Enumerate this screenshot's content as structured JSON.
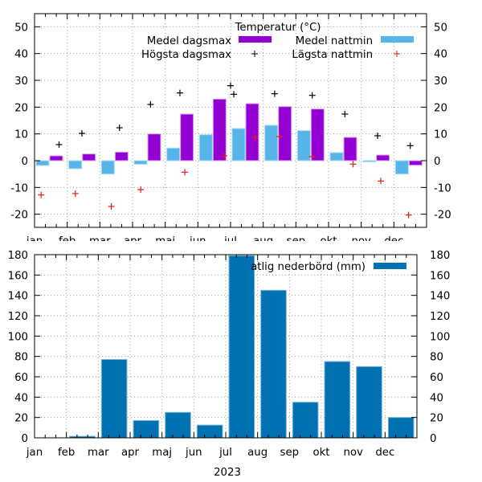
{
  "chart_data": [
    {
      "type": "bar",
      "title": "Temperatur (°C)",
      "xlabel": "",
      "ylabel": "",
      "ylim": [
        -25,
        55
      ],
      "yticks": [
        -20,
        -10,
        0,
        10,
        20,
        30,
        40,
        50
      ],
      "grid": true,
      "legend_position": "top-right",
      "categories": [
        "jan",
        "feb",
        "mar",
        "apr",
        "maj",
        "jun",
        "jul",
        "aug",
        "sep",
        "okt",
        "nov",
        "dec"
      ],
      "series": [
        {
          "name": "Medel nattmin",
          "kind": "bar",
          "color": "#56b4e9",
          "values": [
            -1.8,
            -3.0,
            -5.0,
            -1.3,
            4.7,
            9.7,
            12.0,
            13.2,
            11.2,
            3.0,
            -0.4,
            -5.0
          ]
        },
        {
          "name": "Medel dagsmax",
          "kind": "bar",
          "color": "#9400d3",
          "values": [
            1.8,
            2.5,
            3.2,
            10.0,
            17.4,
            23.0,
            21.3,
            20.2,
            19.3,
            8.7,
            2.1,
            -1.7
          ]
        },
        {
          "name": "Högsta dagsmax",
          "kind": "point",
          "color": "#000000",
          "points": [
            [
              0.75,
              6.0
            ],
            [
              1.45,
              10.2
            ],
            [
              2.6,
              12.3
            ],
            [
              3.55,
              21.0
            ],
            [
              4.45,
              25.3
            ],
            [
              6.0,
              28.0
            ],
            [
              6.1,
              24.8
            ],
            [
              7.35,
              25.0
            ],
            [
              8.5,
              24.4
            ],
            [
              9.5,
              17.4
            ],
            [
              10.5,
              9.3
            ],
            [
              11.5,
              5.6
            ]
          ]
        },
        {
          "name": "Lägsta nattmin",
          "kind": "point",
          "color": "#e41a1c",
          "points": [
            [
              0.2,
              -12.8
            ],
            [
              1.25,
              -12.3
            ],
            [
              2.35,
              -17.1
            ],
            [
              3.25,
              -10.8
            ],
            [
              4.6,
              -4.3
            ],
            [
              5.8,
              1.8
            ],
            [
              6.75,
              8.6
            ],
            [
              7.5,
              9.0
            ],
            [
              8.5,
              1.5
            ],
            [
              9.75,
              -1.3
            ],
            [
              10.6,
              -7.6
            ],
            [
              11.45,
              -20.3
            ]
          ]
        }
      ]
    },
    {
      "type": "bar",
      "title": "",
      "xlabel": "2023",
      "ylabel": "",
      "ylim": [
        0,
        180
      ],
      "yticks": [
        0,
        20,
        40,
        60,
        80,
        100,
        120,
        140,
        160,
        180
      ],
      "grid": true,
      "legend_position": "top-right",
      "categories": [
        "jan",
        "feb",
        "mar",
        "apr",
        "maj",
        "jun",
        "jul",
        "aug",
        "sep",
        "okt",
        "nov",
        "dec"
      ],
      "series": [
        {
          "name": "Månatlig nederbörd (mm)",
          "legend_visible_text": "atlig nederbörd (mm)",
          "kind": "bar",
          "color": "#0072b2",
          "values": [
            0,
            1.5,
            77,
            17,
            25,
            12.5,
            179,
            145,
            35,
            75,
            70,
            20
          ]
        }
      ]
    }
  ]
}
